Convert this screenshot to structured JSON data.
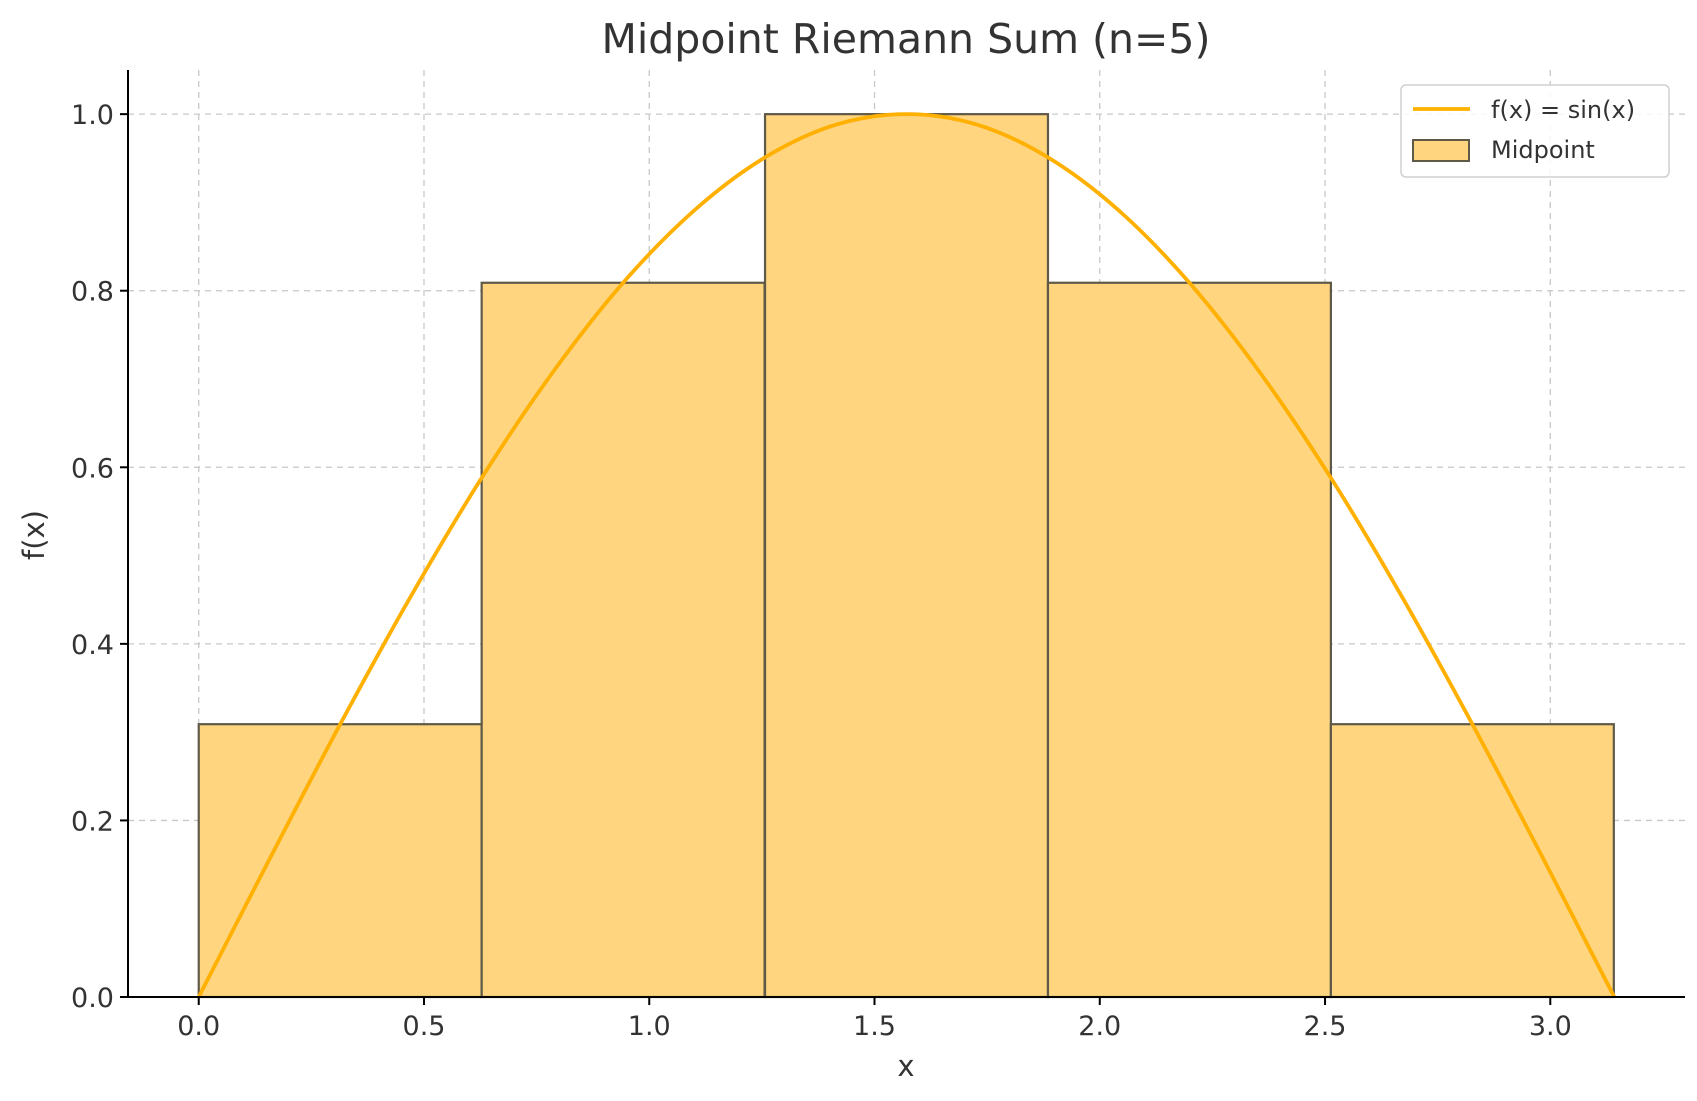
{
  "chart_data": {
    "type": "bar",
    "title": "Midpoint Riemann Sum (n=5)",
    "xlabel": "x",
    "ylabel": "f(x)",
    "xlim": [
      -0.157,
      3.299
    ],
    "ylim": [
      0,
      1.05
    ],
    "xticks": [
      "0.0",
      "0.5",
      "1.0",
      "1.5",
      "2.0",
      "2.5",
      "3.0"
    ],
    "yticks": [
      "0.0",
      "0.2",
      "0.4",
      "0.6",
      "0.8",
      "1.0"
    ],
    "grid": true,
    "legend_position": "top-right",
    "colors": {
      "curve": "#ffb000",
      "bars": "#ffd580",
      "bar_edge": "#5f5a48"
    },
    "bars": {
      "name": "Midpoint",
      "x_left": [
        0.0,
        0.628,
        1.257,
        1.885,
        2.513
      ],
      "width": 0.628,
      "heights": [
        0.309,
        0.809,
        1.0,
        0.809,
        0.309
      ]
    },
    "series": [
      {
        "name": "f(x) = sin(x)",
        "type": "line",
        "x": [
          0.0,
          0.157,
          0.314,
          0.471,
          0.628,
          0.785,
          0.942,
          1.1,
          1.257,
          1.414,
          1.571,
          1.728,
          1.885,
          2.042,
          2.199,
          2.356,
          2.513,
          2.67,
          2.827,
          2.985,
          3.142
        ],
        "y": [
          0.0,
          0.156,
          0.309,
          0.454,
          0.588,
          0.707,
          0.809,
          0.891,
          0.951,
          0.988,
          1.0,
          0.988,
          0.951,
          0.891,
          0.809,
          0.707,
          0.588,
          0.454,
          0.309,
          0.156,
          0.0
        ]
      }
    ]
  }
}
